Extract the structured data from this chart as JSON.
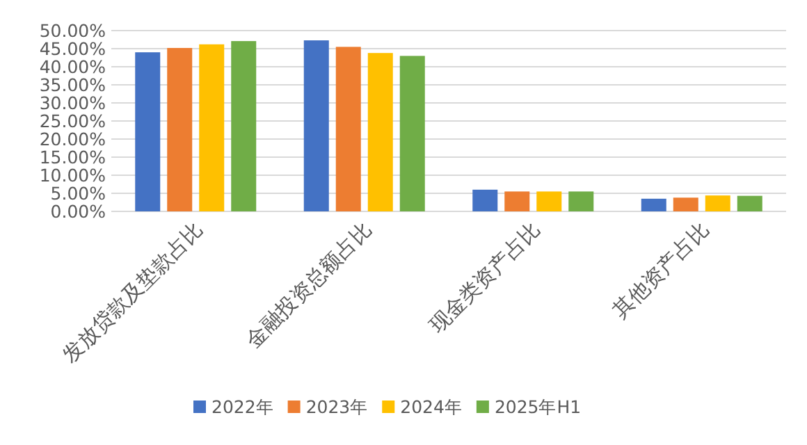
{
  "chart_data": {
    "type": "bar",
    "categories": [
      "发放贷款及垫款占比",
      "金融投资总额占比",
      "现金类资产占比",
      "其他资产占比"
    ],
    "series": [
      {
        "name": "2022年",
        "color": "#4472c4",
        "values": [
          44.0,
          47.3,
          6.0,
          3.5
        ]
      },
      {
        "name": "2023年",
        "color": "#ed7d31",
        "values": [
          45.2,
          45.5,
          5.5,
          3.8
        ]
      },
      {
        "name": "2024年",
        "color": "#ffc000",
        "values": [
          46.2,
          43.8,
          5.5,
          4.4
        ]
      },
      {
        "name": "2025年H1",
        "color": "#70ad47",
        "values": [
          47.1,
          43.0,
          5.5,
          4.3
        ]
      }
    ],
    "ylim": [
      0,
      50
    ],
    "yticks": [
      {
        "value": 0,
        "label": "0.00%"
      },
      {
        "value": 5,
        "label": "5.00%"
      },
      {
        "value": 10,
        "label": "10.00%"
      },
      {
        "value": 15,
        "label": "15.00%"
      },
      {
        "value": 20,
        "label": "20.00%"
      },
      {
        "value": 25,
        "label": "25.00%"
      },
      {
        "value": 30,
        "label": "30.00%"
      },
      {
        "value": 35,
        "label": "35.00%"
      },
      {
        "value": 40,
        "label": "40.00%"
      },
      {
        "value": 45,
        "label": "45.00%"
      },
      {
        "value": 50,
        "label": "50.00%"
      }
    ],
    "grid": "y",
    "legend": "bottom"
  }
}
